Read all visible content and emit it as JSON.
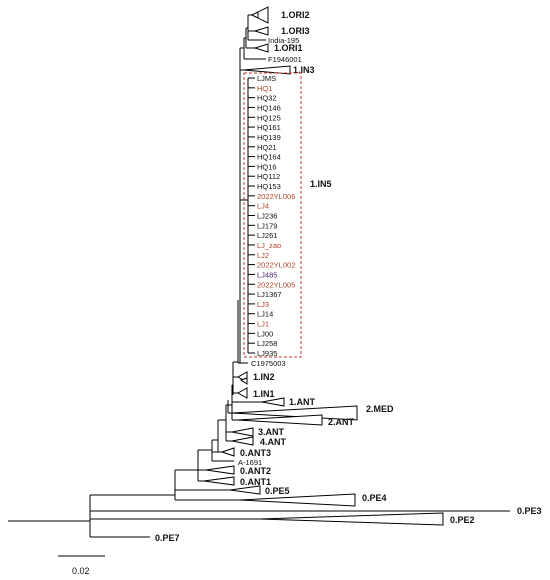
{
  "clade_labels": {
    "ori2": "1.ORI2",
    "ori3": "1.ORI3",
    "india": "India-195",
    "ori1": "1.ORI1",
    "f1946": "F1946001",
    "in3": "1.IN3",
    "in5": "1.IN5",
    "c1975": "C1975003",
    "in2": "1.IN2",
    "in1": "1.IN1",
    "ant1_1": "1.ANT",
    "med2": "2.MED",
    "ant2": "2.ANT",
    "ant3": "3.ANT",
    "ant4": "4.ANT",
    "ant0_3": "0.ANT3",
    "a1691": "A-1691",
    "ant0_2": "0.ANT2",
    "ant0_1": "0.ANT1",
    "pe5": "0.PE5",
    "pe4": "0.PE4",
    "pe3": "0.PE3",
    "pe2": "0.PE2",
    "pe7": "0.PE7"
  },
  "in5_tips": [
    {
      "label": "LJMS",
      "color": "normal"
    },
    {
      "label": "HQ1",
      "color": "highlight"
    },
    {
      "label": "HQ32",
      "color": "normal"
    },
    {
      "label": "HQ146",
      "color": "normal"
    },
    {
      "label": "HQ125",
      "color": "normal"
    },
    {
      "label": "HQ161",
      "color": "normal"
    },
    {
      "label": "HQ139",
      "color": "normal"
    },
    {
      "label": "HQ21",
      "color": "normal"
    },
    {
      "label": "HQ164",
      "color": "normal"
    },
    {
      "label": "HQ16",
      "color": "normal"
    },
    {
      "label": "HQ112",
      "color": "normal"
    },
    {
      "label": "HQ153",
      "color": "normal"
    },
    {
      "label": "2022YL006",
      "color": "highlight"
    },
    {
      "label": "LJ4",
      "color": "highlight"
    },
    {
      "label": "LJ236",
      "color": "normal"
    },
    {
      "label": "LJ179",
      "color": "normal"
    },
    {
      "label": "LJ261",
      "color": "normal"
    },
    {
      "label": "LJ_zao",
      "color": "highlight"
    },
    {
      "label": "LJ2",
      "color": "highlight"
    },
    {
      "label": "2022YL002",
      "color": "highlight"
    },
    {
      "label": "LJ485",
      "color": "purple"
    },
    {
      "label": "2022YL005",
      "color": "highlight"
    },
    {
      "label": "LJ1367",
      "color": "normal"
    },
    {
      "label": "LJ3",
      "color": "highlight"
    },
    {
      "label": "LJ14",
      "color": "normal"
    },
    {
      "label": "LJ1",
      "color": "highlight"
    },
    {
      "label": "LJ00",
      "color": "normal"
    },
    {
      "label": "LJ258",
      "color": "normal"
    },
    {
      "label": "LJ935",
      "color": "normal"
    }
  ],
  "colors": {
    "highlight": "#b0442b",
    "purple": "#4a2466",
    "box": "#c0392b"
  },
  "scale_bar": {
    "value": "0.02"
  }
}
